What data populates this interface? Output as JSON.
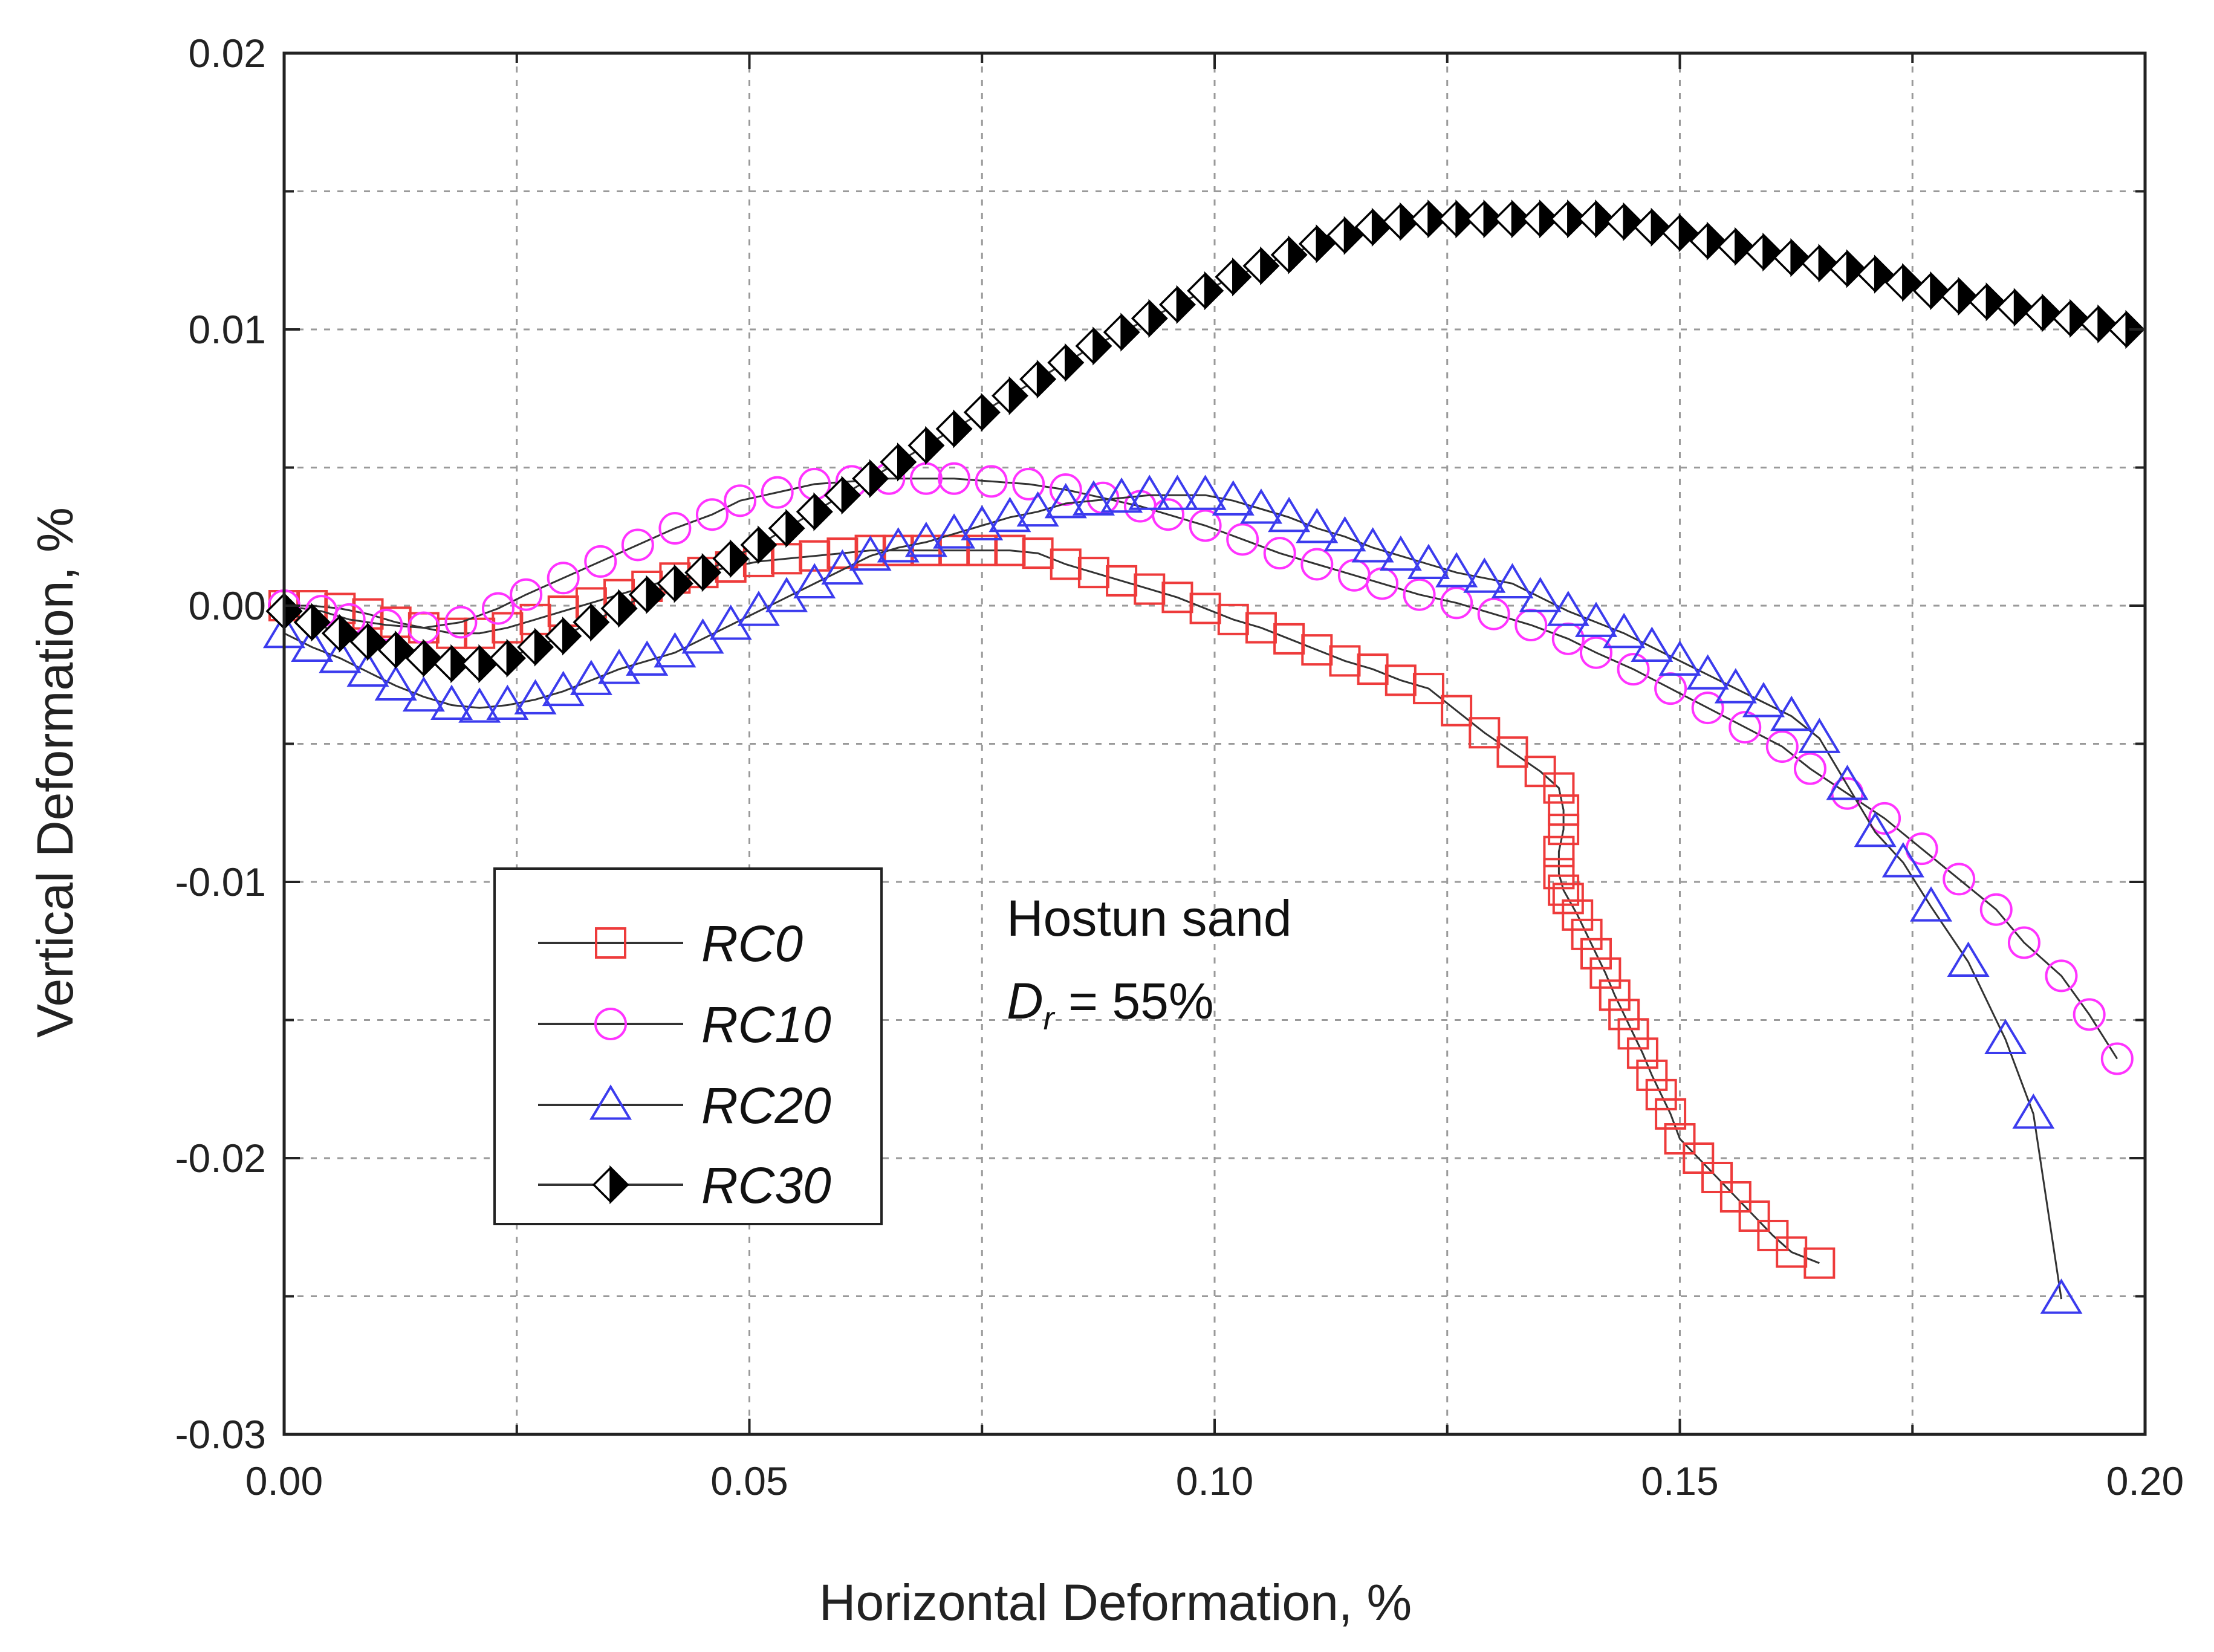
{
  "chart_data": {
    "type": "scatter",
    "xlabel": "Horizontal Deformation, %",
    "ylabel": "Vertical Deformation, %",
    "xlim": [
      0,
      0.2
    ],
    "ylim": [
      -0.03,
      0.02
    ],
    "grid": true,
    "xticks": [
      0.0,
      0.05,
      0.1,
      0.15,
      0.2
    ],
    "xtick_labels": [
      "0.00",
      "0.05",
      "0.10",
      "0.15",
      "0.20"
    ],
    "yticks": [
      0.02,
      0.01,
      0.0,
      -0.01,
      -0.02,
      -0.03
    ],
    "ytick_labels": [
      "0.02",
      "0.01",
      "0.00",
      "-0.01",
      "-0.02",
      "-0.03"
    ],
    "legend_position": "lower-left",
    "annotation": {
      "line1": "Hostun sand",
      "line2_var": "D",
      "line2_sub": "r",
      "line2_rest": " = 55%"
    },
    "series": [
      {
        "name": "RC0",
        "marker": "square",
        "color": "#ee3b3b",
        "line_color": "#333333",
        "x": [
          0.0,
          0.003,
          0.006,
          0.009,
          0.012,
          0.015,
          0.018,
          0.021,
          0.024,
          0.027,
          0.03,
          0.033,
          0.036,
          0.039,
          0.042,
          0.045,
          0.048,
          0.051,
          0.054,
          0.057,
          0.06,
          0.063,
          0.066,
          0.069,
          0.072,
          0.075,
          0.078,
          0.081,
          0.084,
          0.087,
          0.09,
          0.093,
          0.096,
          0.099,
          0.102,
          0.105,
          0.108,
          0.111,
          0.114,
          0.117,
          0.12,
          0.123,
          0.126,
          0.129,
          0.132,
          0.135,
          0.137,
          0.1375,
          0.1375,
          0.137,
          0.137,
          0.1375,
          0.138,
          0.139,
          0.14,
          0.141,
          0.142,
          0.143,
          0.144,
          0.145,
          0.146,
          0.147,
          0.148,
          0.149,
          0.15,
          0.152,
          0.154,
          0.156,
          0.158,
          0.16,
          0.162,
          0.165
        ],
        "y": [
          0.0,
          0.0,
          -0.0001,
          -0.0003,
          -0.0006,
          -0.0008,
          -0.001,
          -0.001,
          -0.0008,
          -0.0005,
          -0.0002,
          0.0001,
          0.0004,
          0.0007,
          0.001,
          0.0012,
          0.0014,
          0.0016,
          0.0017,
          0.0018,
          0.0019,
          0.002,
          0.002,
          0.002,
          0.002,
          0.002,
          0.002,
          0.0019,
          0.0015,
          0.0012,
          0.0009,
          0.0006,
          0.0003,
          -0.0001,
          -0.0005,
          -0.0008,
          -0.0012,
          -0.0016,
          -0.002,
          -0.0023,
          -0.0027,
          -0.003,
          -0.0038,
          -0.0046,
          -0.0053,
          -0.006,
          -0.0066,
          -0.0074,
          -0.0081,
          -0.0089,
          -0.0097,
          -0.0103,
          -0.0106,
          -0.0112,
          -0.0119,
          -0.0126,
          -0.0133,
          -0.0141,
          -0.0148,
          -0.0155,
          -0.0162,
          -0.017,
          -0.0177,
          -0.0184,
          -0.0193,
          -0.02,
          -0.0207,
          -0.0214,
          -0.0221,
          -0.0228,
          -0.0234,
          -0.0238
        ]
      },
      {
        "name": "RC10",
        "marker": "circle",
        "color": "#ff33ff",
        "line_color": "#333333",
        "x": [
          0.0,
          0.004,
          0.007,
          0.011,
          0.015,
          0.019,
          0.023,
          0.026,
          0.03,
          0.034,
          0.038,
          0.042,
          0.046,
          0.049,
          0.053,
          0.057,
          0.061,
          0.065,
          0.069,
          0.072,
          0.076,
          0.08,
          0.084,
          0.088,
          0.092,
          0.095,
          0.099,
          0.103,
          0.107,
          0.111,
          0.115,
          0.118,
          0.122,
          0.126,
          0.13,
          0.134,
          0.138,
          0.141,
          0.145,
          0.149,
          0.153,
          0.157,
          0.161,
          0.164,
          0.168,
          0.172,
          0.176,
          0.18,
          0.184,
          0.187,
          0.191,
          0.194,
          0.197
        ],
        "y": [
          0.0,
          -0.0002,
          -0.0005,
          -0.0007,
          -0.0008,
          -0.0006,
          -0.0001,
          0.0004,
          0.001,
          0.0016,
          0.0022,
          0.0028,
          0.0033,
          0.0038,
          0.0041,
          0.0044,
          0.0045,
          0.0046,
          0.0046,
          0.0046,
          0.0045,
          0.0044,
          0.0042,
          0.0039,
          0.0036,
          0.0033,
          0.0029,
          0.0024,
          0.0019,
          0.0015,
          0.0011,
          0.0008,
          0.0004,
          0.0001,
          -0.0003,
          -0.0007,
          -0.0012,
          -0.0017,
          -0.0023,
          -0.003,
          -0.0037,
          -0.0044,
          -0.0051,
          -0.0059,
          -0.0068,
          -0.0077,
          -0.0088,
          -0.0099,
          -0.011,
          -0.0122,
          -0.0134,
          -0.0148,
          -0.0164
        ]
      },
      {
        "name": "RC20",
        "marker": "triangle",
        "color": "#3b3bee",
        "line_color": "#333333",
        "x": [
          0.0,
          0.003,
          0.006,
          0.009,
          0.012,
          0.015,
          0.018,
          0.021,
          0.024,
          0.027,
          0.03,
          0.033,
          0.036,
          0.039,
          0.042,
          0.045,
          0.048,
          0.051,
          0.054,
          0.057,
          0.06,
          0.063,
          0.066,
          0.069,
          0.072,
          0.075,
          0.078,
          0.081,
          0.084,
          0.087,
          0.09,
          0.093,
          0.096,
          0.099,
          0.102,
          0.105,
          0.108,
          0.111,
          0.114,
          0.117,
          0.12,
          0.123,
          0.126,
          0.129,
          0.132,
          0.135,
          0.138,
          0.141,
          0.144,
          0.147,
          0.15,
          0.153,
          0.156,
          0.159,
          0.162,
          0.165,
          0.168,
          0.171,
          0.174,
          0.177,
          0.181,
          0.185,
          0.188,
          0.191
        ],
        "y": [
          -0.001,
          -0.0015,
          -0.0019,
          -0.0024,
          -0.0029,
          -0.0033,
          -0.0036,
          -0.0037,
          -0.0036,
          -0.0034,
          -0.0031,
          -0.0027,
          -0.0023,
          -0.002,
          -0.0017,
          -0.0012,
          -0.0007,
          -0.0002,
          0.0003,
          0.0008,
          0.0013,
          0.0018,
          0.0021,
          0.0023,
          0.0026,
          0.0029,
          0.0032,
          0.0034,
          0.0037,
          0.0038,
          0.0039,
          0.004,
          0.004,
          0.004,
          0.0038,
          0.0035,
          0.0032,
          0.0028,
          0.0025,
          0.0021,
          0.0018,
          0.0015,
          0.0012,
          0.001,
          0.0008,
          0.0003,
          -0.0002,
          -0.0006,
          -0.001,
          -0.0015,
          -0.002,
          -0.0025,
          -0.003,
          -0.0035,
          -0.004,
          -0.0048,
          -0.0065,
          -0.0082,
          -0.0093,
          -0.0109,
          -0.0129,
          -0.0157,
          -0.0184,
          -0.0251
        ]
      },
      {
        "name": "RC30",
        "marker": "half-diamond",
        "color": "#000000",
        "line_color": "#333333",
        "x": [
          0.0,
          0.003,
          0.006,
          0.009,
          0.012,
          0.015,
          0.018,
          0.021,
          0.024,
          0.027,
          0.03,
          0.033,
          0.036,
          0.039,
          0.042,
          0.045,
          0.048,
          0.051,
          0.054,
          0.057,
          0.06,
          0.063,
          0.066,
          0.069,
          0.072,
          0.075,
          0.078,
          0.081,
          0.084,
          0.087,
          0.09,
          0.093,
          0.096,
          0.099,
          0.102,
          0.105,
          0.108,
          0.111,
          0.114,
          0.117,
          0.12,
          0.123,
          0.126,
          0.129,
          0.132,
          0.135,
          0.138,
          0.141,
          0.144,
          0.147,
          0.15,
          0.153,
          0.156,
          0.159,
          0.162,
          0.165,
          0.168,
          0.171,
          0.174,
          0.177,
          0.18,
          0.183,
          0.186,
          0.189,
          0.192,
          0.195,
          0.198
        ],
        "y": [
          -0.0002,
          -0.0006,
          -0.001,
          -0.0013,
          -0.0016,
          -0.0019,
          -0.0021,
          -0.0021,
          -0.0019,
          -0.0015,
          -0.0011,
          -0.0006,
          -0.0001,
          0.0004,
          0.0008,
          0.0012,
          0.0017,
          0.0022,
          0.0028,
          0.0034,
          0.004,
          0.0046,
          0.0052,
          0.0058,
          0.0064,
          0.007,
          0.0076,
          0.0082,
          0.0088,
          0.0094,
          0.0099,
          0.0104,
          0.0109,
          0.0114,
          0.0119,
          0.0123,
          0.0127,
          0.0131,
          0.0134,
          0.0137,
          0.0139,
          0.014,
          0.014,
          0.014,
          0.014,
          0.014,
          0.014,
          0.014,
          0.0139,
          0.0137,
          0.0135,
          0.0132,
          0.013,
          0.0128,
          0.0126,
          0.0124,
          0.0122,
          0.012,
          0.0117,
          0.0114,
          0.0112,
          0.011,
          0.0108,
          0.0106,
          0.0104,
          0.0102,
          0.01
        ]
      }
    ]
  }
}
